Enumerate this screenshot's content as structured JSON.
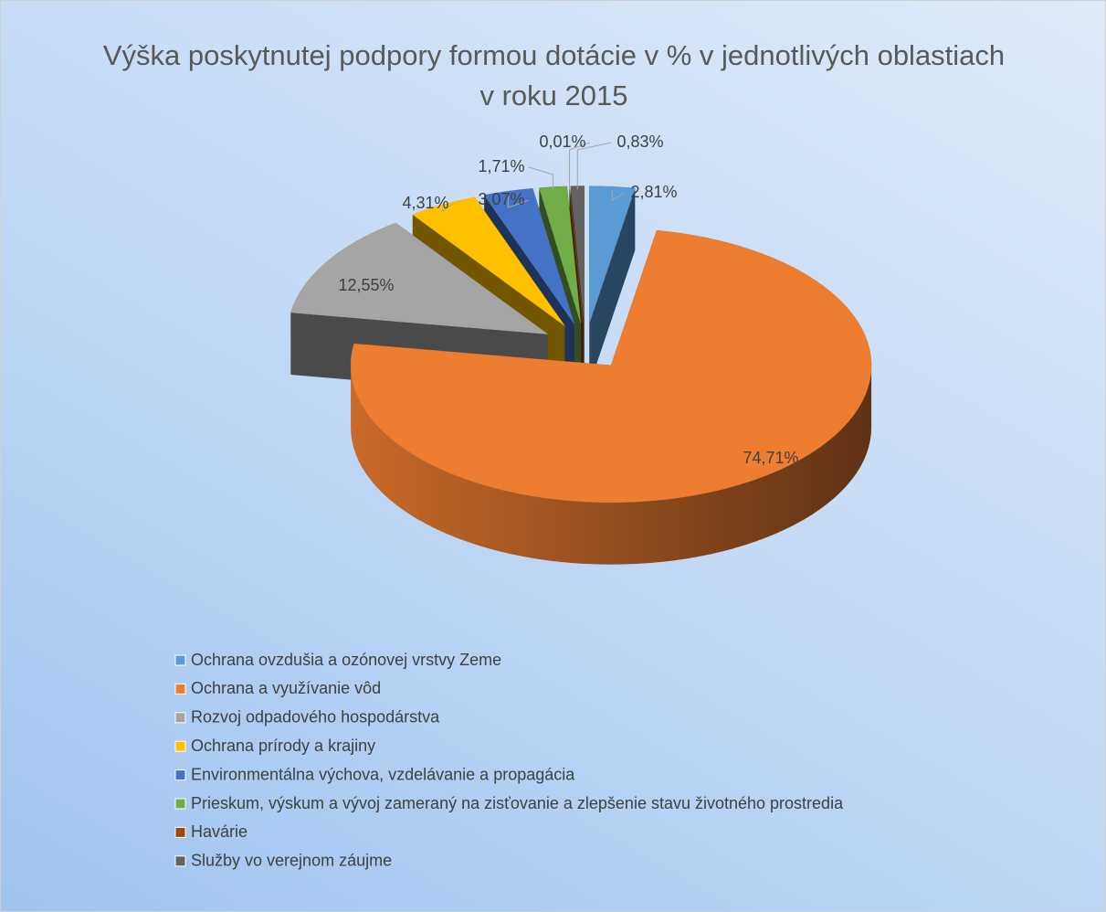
{
  "chart_data": {
    "type": "pie",
    "title": "Výška poskytnutej podpory formou dotácie v % v jednotlivých oblastiach v roku 2015",
    "categories": [
      "Ochrana ovzdušia a ozónovej vrstvy Zeme",
      "Ochrana a využívanie vôd",
      "Rozvoj odpadového hospodárstva",
      "Ochrana prírody a krajiny",
      "Environmentálna výchova, vzdelávanie a propagácia",
      "Prieskum, výskum a vývoj zameraný na zisťovanie a zlepšenie stavu životného prostredia",
      "Havárie",
      "Služby vo verejnom záujme"
    ],
    "values": [
      2.81,
      74.71,
      12.55,
      4.31,
      3.07,
      1.71,
      0.01,
      0.83
    ],
    "value_labels": [
      "2,81%",
      "74,71%",
      "12,55%",
      "4,31%",
      "3,07%",
      "1,71%",
      "0,01%",
      "0,83%"
    ],
    "colors": [
      "#5b9bd5",
      "#ed7d31",
      "#a5a5a5",
      "#ffc000",
      "#4472c4",
      "#70ad47",
      "#9e480e",
      "#636363"
    ]
  }
}
